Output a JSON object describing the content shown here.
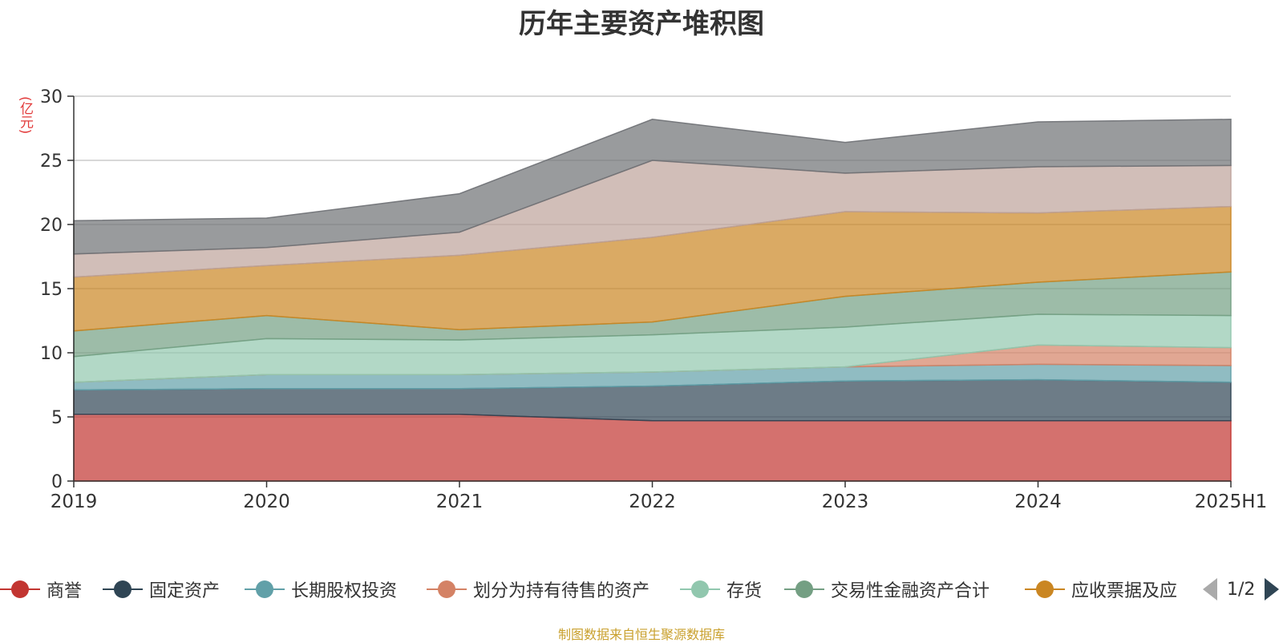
{
  "title": "历年主要资产堆积图",
  "source_note": "制图数据来自恒生聚源数据库",
  "chart_data": {
    "type": "area",
    "stacked": true,
    "title": "历年主要资产堆积图",
    "ylabel": "(亿元)",
    "xlabel": "",
    "ylim": [
      0,
      30
    ],
    "yticks": [
      0,
      5,
      10,
      15,
      20,
      25,
      30
    ],
    "grid": true,
    "legend_position": "bottom",
    "categories": [
      "2019",
      "2020",
      "2021",
      "2022",
      "2023",
      "2024",
      "2025H1"
    ],
    "series": [
      {
        "name": "商誉",
        "color": "#c23531",
        "values": [
          5.2,
          5.2,
          5.2,
          4.7,
          4.7,
          4.7,
          4.7
        ]
      },
      {
        "name": "固定资产",
        "color": "#2f4554",
        "values": [
          1.9,
          2.0,
          2.0,
          2.7,
          3.1,
          3.2,
          3.0
        ]
      },
      {
        "name": "长期股权投资",
        "color": "#61a0a8",
        "values": [
          0.6,
          1.1,
          1.1,
          1.1,
          1.1,
          1.2,
          1.3
        ]
      },
      {
        "name": "划分为持有待售的资产",
        "color": "#d48265",
        "values": [
          0.0,
          0.0,
          0.0,
          0.0,
          0.0,
          1.5,
          1.4
        ]
      },
      {
        "name": "存货",
        "color": "#91c7ae",
        "values": [
          2.0,
          2.8,
          2.7,
          2.9,
          3.1,
          2.4,
          2.5
        ]
      },
      {
        "name": "交易性金融资产合计",
        "color": "#749f83",
        "values": [
          2.0,
          1.8,
          0.8,
          1.0,
          2.4,
          2.5,
          3.4
        ]
      },
      {
        "name": "应收票据及应",
        "color": "#ca8622",
        "values": [
          4.2,
          3.9,
          5.8,
          6.6,
          6.6,
          5.4,
          5.1
        ]
      },
      {
        "name": "",
        "color": "#bda29a",
        "values": [
          1.8,
          1.4,
          1.8,
          6.0,
          3.0,
          3.6,
          3.2
        ]
      },
      {
        "name": "",
        "color": "#6e7074",
        "values": [
          2.6,
          2.3,
          3.0,
          3.2,
          2.4,
          3.5,
          3.6
        ]
      }
    ]
  },
  "legend": {
    "items": [
      {
        "label": "商誉",
        "color": "#c23531"
      },
      {
        "label": "固定资产",
        "color": "#2f4554"
      },
      {
        "label": "长期股权投资",
        "color": "#61a0a8"
      },
      {
        "label": "划分为持有待售的资产",
        "color": "#d48265"
      },
      {
        "label": "存货",
        "color": "#91c7ae"
      },
      {
        "label": "交易性金融资产合计",
        "color": "#749f83"
      },
      {
        "label": "应收票据及应",
        "color": "#ca8622"
      }
    ],
    "page_text": "1/2"
  }
}
